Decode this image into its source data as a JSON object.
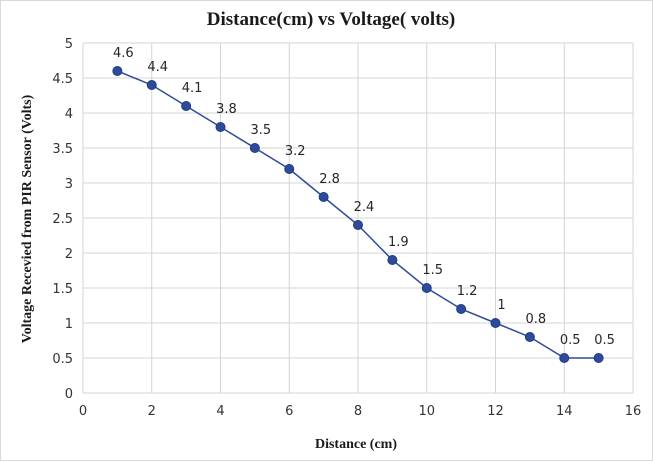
{
  "chart_data": {
    "type": "line",
    "title": "Distance(cm) vs Voltage( volts)",
    "xlabel": "Distance (cm)",
    "ylabel": "Voltage Recevied from PIR Sensor (Volts)",
    "xlim": [
      0,
      16
    ],
    "ylim": [
      0,
      5
    ],
    "x_ticks": [
      "0",
      "2",
      "4",
      "6",
      "8",
      "10",
      "12",
      "14",
      "16"
    ],
    "y_ticks": [
      "0",
      "0.5",
      "1",
      "1.5",
      "2",
      "2.5",
      "3",
      "3.5",
      "4",
      "4.5",
      "5"
    ],
    "grid": true,
    "legend": "none",
    "series": [
      {
        "x": [
          1,
          2,
          3,
          4,
          5,
          6,
          7,
          8,
          9,
          10,
          11,
          12,
          13,
          14,
          15
        ],
        "y": [
          4.6,
          4.4,
          4.1,
          3.8,
          3.5,
          3.2,
          2.8,
          2.4,
          1.9,
          1.5,
          1.2,
          1,
          0.8,
          0.5,
          0.5
        ],
        "data_labels": [
          "4.6",
          "4.4",
          "4.1",
          "3.8",
          "3.5",
          "3.2",
          "2.8",
          "2.4",
          "1.9",
          "1.5",
          "1.2",
          "1",
          "0.8",
          "0.5",
          "0.5"
        ],
        "color": "#2e4b9b"
      }
    ],
    "grid_color": "#d4d4d4"
  }
}
